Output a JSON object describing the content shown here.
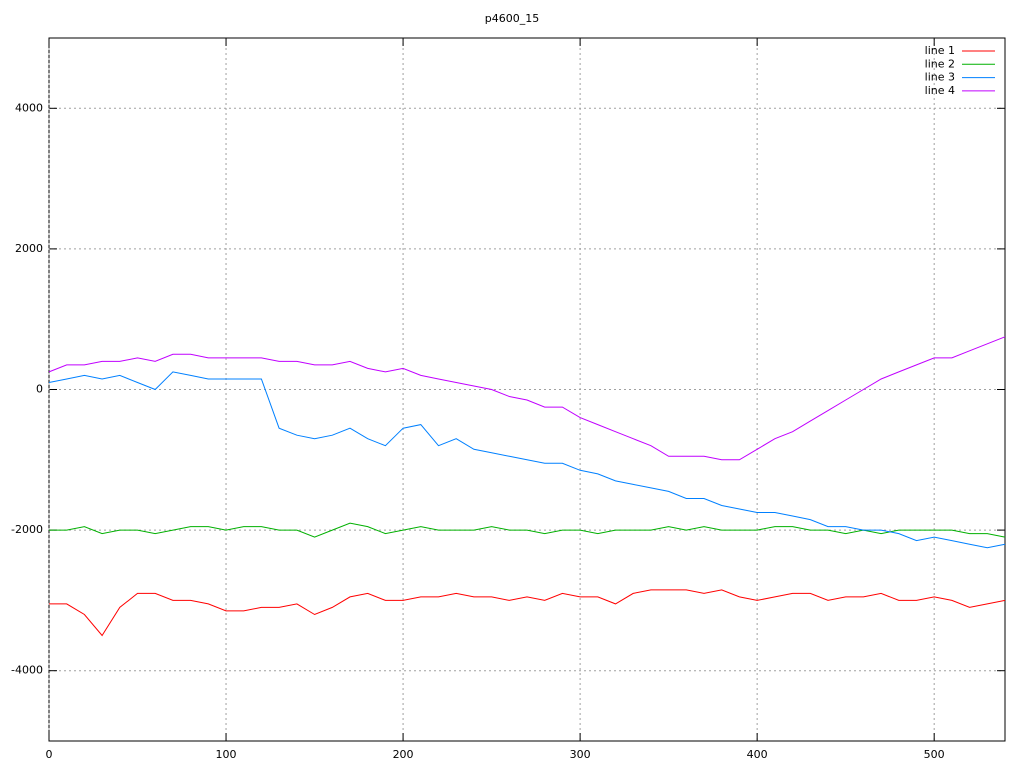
{
  "chart_data": {
    "type": "line",
    "title": "p4600_15",
    "x": [
      0,
      10,
      20,
      30,
      40,
      50,
      60,
      70,
      80,
      90,
      100,
      110,
      120,
      130,
      140,
      150,
      160,
      170,
      180,
      190,
      200,
      210,
      220,
      230,
      240,
      250,
      260,
      270,
      280,
      290,
      300,
      310,
      320,
      330,
      340,
      350,
      360,
      370,
      380,
      390,
      400,
      410,
      420,
      430,
      440,
      450,
      460,
      470,
      480,
      490,
      500,
      510,
      520,
      530,
      540
    ],
    "series": [
      {
        "name": "line 1",
        "color": "#ff0000",
        "values": [
          -3050,
          -3050,
          -3200,
          -3500,
          -3100,
          -2900,
          -2900,
          -3000,
          -3000,
          -3050,
          -3150,
          -3150,
          -3100,
          -3100,
          -3050,
          -3200,
          -3100,
          -2950,
          -2900,
          -3000,
          -3000,
          -2950,
          -2950,
          -2900,
          -2950,
          -2950,
          -3000,
          -2950,
          -3000,
          -2900,
          -2950,
          -2950,
          -3050,
          -2900,
          -2850,
          -2850,
          -2850,
          -2900,
          -2850,
          -2950,
          -3000,
          -2950,
          -2900,
          -2900,
          -3000,
          -2950,
          -2950,
          -2900,
          -3000,
          -3000,
          -2950,
          -3000,
          -3100,
          -3050,
          -3000
        ]
      },
      {
        "name": "line 2",
        "color": "#00b000",
        "values": [
          -2000,
          -2000,
          -1950,
          -2050,
          -2000,
          -2000,
          -2050,
          -2000,
          -1950,
          -1950,
          -2000,
          -1950,
          -1950,
          -2000,
          -2000,
          -2100,
          -2000,
          -1900,
          -1950,
          -2050,
          -2000,
          -1950,
          -2000,
          -2000,
          -2000,
          -1950,
          -2000,
          -2000,
          -2050,
          -2000,
          -2000,
          -2050,
          -2000,
          -2000,
          -2000,
          -1950,
          -2000,
          -1950,
          -2000,
          -2000,
          -2000,
          -1950,
          -1950,
          -2000,
          -2000,
          -2050,
          -2000,
          -2050,
          -2000,
          -2000,
          -2000,
          -2000,
          -2050,
          -2050,
          -2100
        ]
      },
      {
        "name": "line 3",
        "color": "#0080ff",
        "values": [
          100,
          150,
          200,
          150,
          200,
          100,
          0,
          250,
          200,
          150,
          150,
          150,
          150,
          -550,
          -650,
          -700,
          -650,
          -550,
          -700,
          -800,
          -550,
          -500,
          -800,
          -700,
          -850,
          -900,
          -950,
          -1000,
          -1050,
          -1050,
          -1150,
          -1200,
          -1300,
          -1350,
          -1400,
          -1450,
          -1550,
          -1550,
          -1650,
          -1700,
          -1750,
          -1750,
          -1800,
          -1850,
          -1950,
          -1950,
          -2000,
          -2000,
          -2050,
          -2150,
          -2100,
          -2150,
          -2200,
          -2250,
          -2200
        ]
      },
      {
        "name": "line 4",
        "color": "#c000ff",
        "values": [
          250,
          350,
          350,
          400,
          400,
          450,
          400,
          500,
          500,
          450,
          450,
          450,
          450,
          400,
          400,
          350,
          350,
          400,
          300,
          250,
          300,
          200,
          150,
          100,
          50,
          0,
          -100,
          -150,
          -250,
          -250,
          -400,
          -500,
          -600,
          -700,
          -800,
          -950,
          -950,
          -950,
          -1000,
          -1000,
          -850,
          -700,
          -600,
          -450,
          -300,
          -150,
          0,
          150,
          250,
          350,
          450,
          450,
          550,
          650,
          750
        ]
      }
    ],
    "xlim": [
      0,
      540
    ],
    "xticks": [
      0,
      100,
      200,
      300,
      400,
      500
    ],
    "ylim": [
      -5000,
      5000
    ],
    "yticks": [
      -4000,
      -2000,
      0,
      2000,
      4000
    ],
    "grid": true,
    "legend": "top-right"
  }
}
